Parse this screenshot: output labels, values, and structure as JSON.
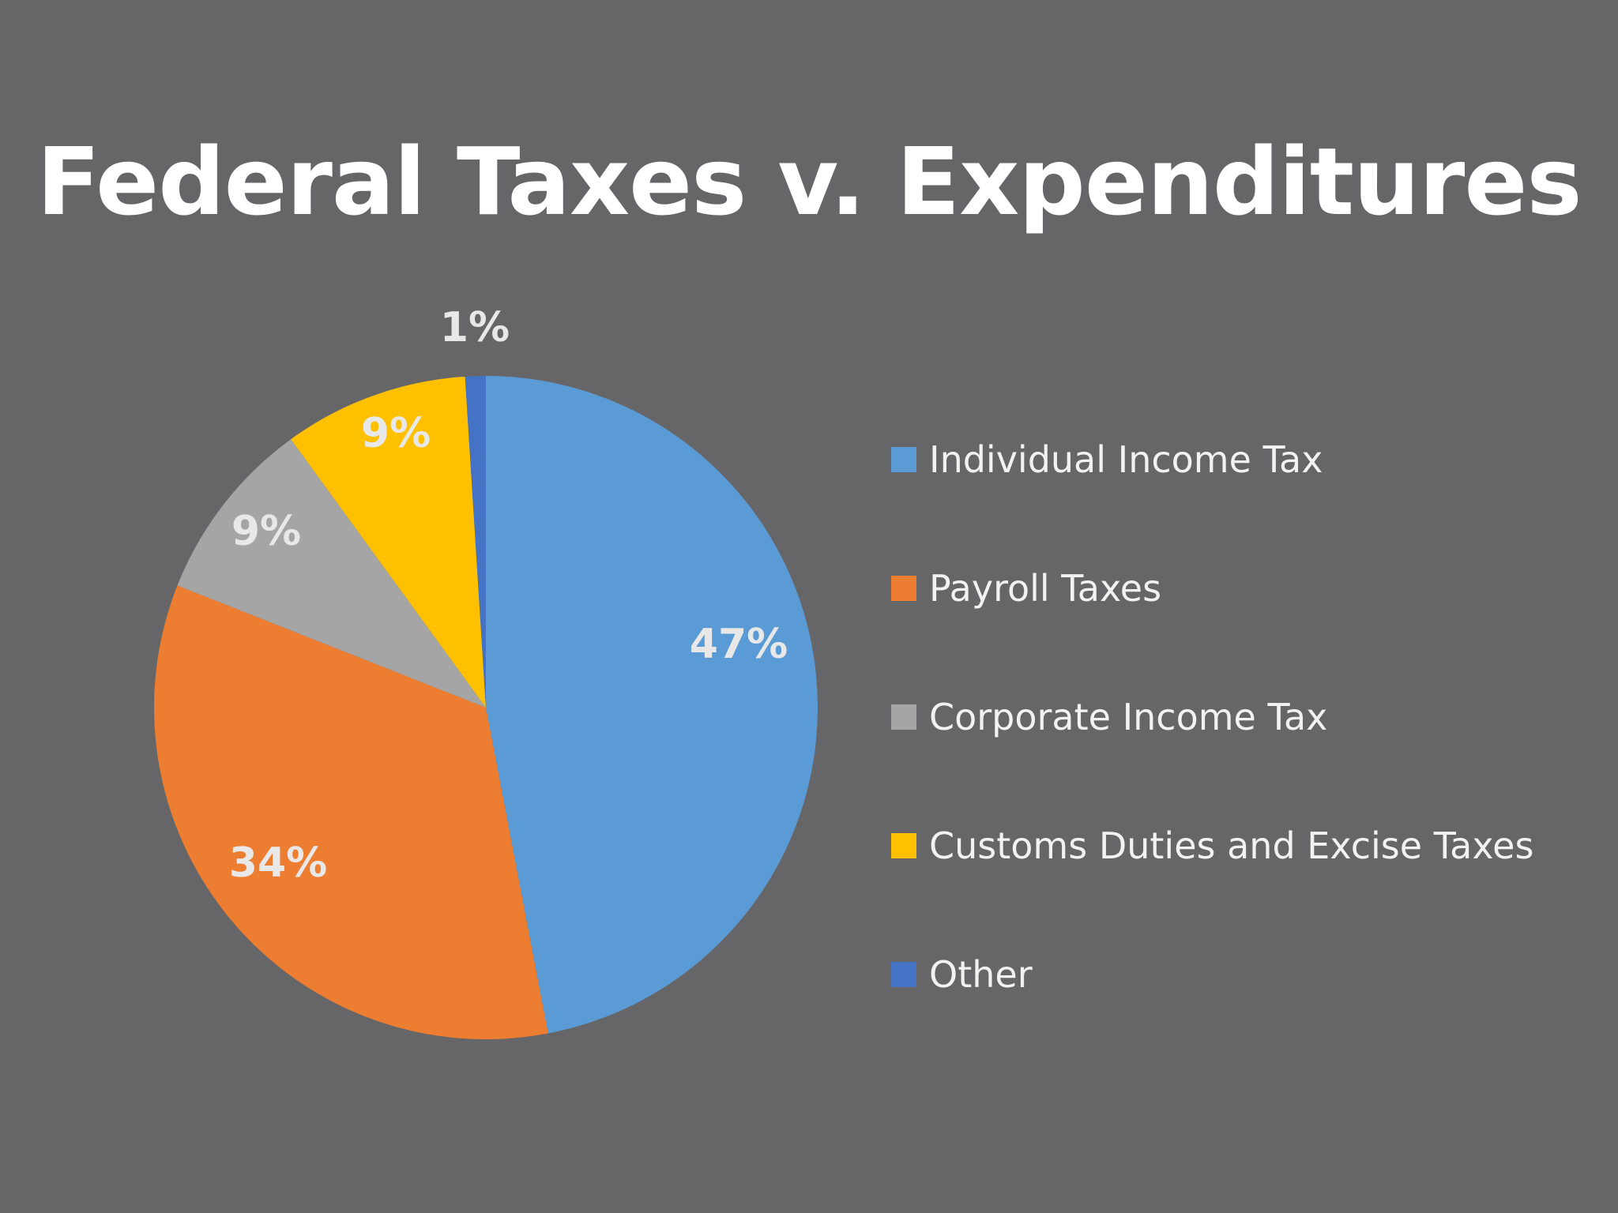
{
  "title": "Federal Taxes v. Expenditures",
  "colors": {
    "background": "#666668",
    "label_text": "#e8e8e8"
  },
  "chart_data": {
    "type": "pie",
    "title": "Federal Taxes v. Expenditures",
    "start_angle_deg": 0,
    "direction": "clockwise",
    "legend_position": "right",
    "slices": [
      {
        "name": "Individual Income Tax",
        "value": 47,
        "label": "47%",
        "color": "#5B9BD5"
      },
      {
        "name": "Payroll Taxes",
        "value": 34,
        "label": "34%",
        "color": "#ED7D31"
      },
      {
        "name": "Corporate Income Tax",
        "value": 9,
        "label": "9%",
        "color": "#A5A5A5"
      },
      {
        "name": "Customs Duties and Excise Taxes",
        "value": 9,
        "label": "9%",
        "color": "#FFC000"
      },
      {
        "name": "Other",
        "value": 1,
        "label": "1%",
        "color": "#4472C4"
      }
    ]
  }
}
